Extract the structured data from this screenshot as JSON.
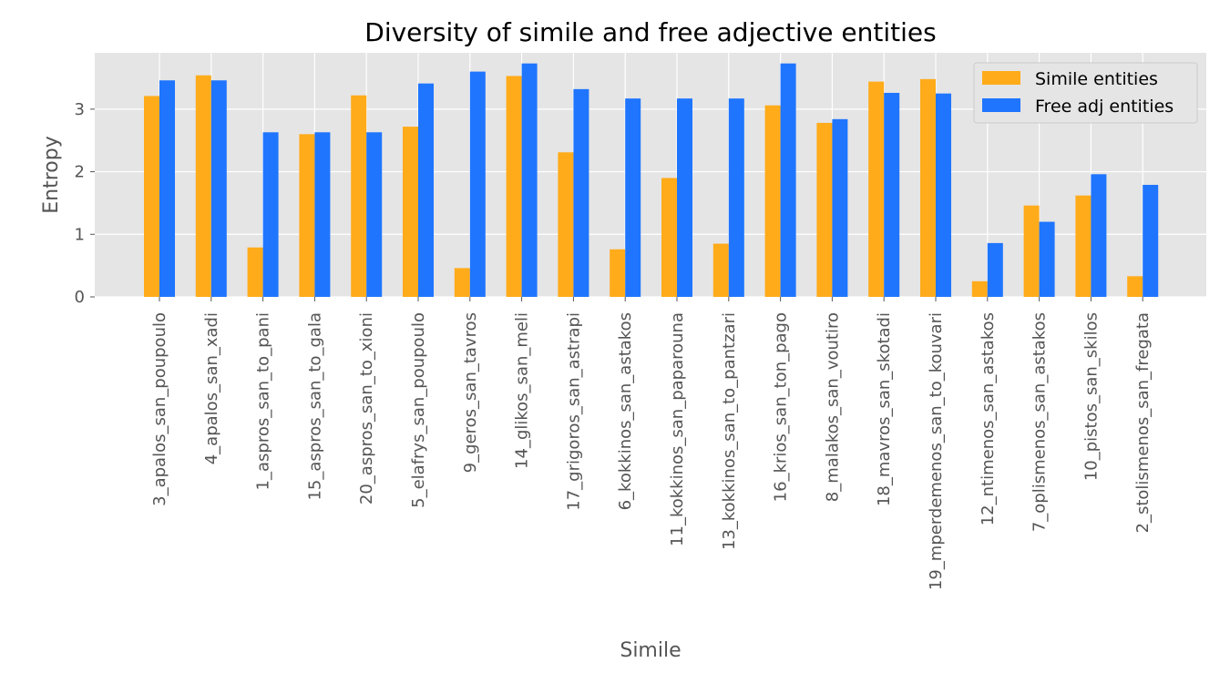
{
  "chart_data": {
    "type": "bar",
    "title": "Diversity of simile and free adjective entities",
    "xlabel": "Simile",
    "ylabel": "Entropy",
    "ylim": [
      0,
      3.9
    ],
    "yticks": [
      0,
      1,
      2,
      3
    ],
    "grid": true,
    "legend_position": "top-right",
    "categories": [
      "3_apalos_san_poupoulo",
      "4_apalos_san_xadi",
      "1_aspros_san_to_pani",
      "15_aspros_san_to_gala",
      "20_aspros_san_to_xioni",
      "5_elafrys_san_poupoulo",
      "9_geros_san_tavros",
      "14_glikos_san_meli",
      "17_grigoros_san_astrapi",
      "6_kokkinos_san_astakos",
      "11_kokkinos_san_paparouna",
      "13_kokkinos_san_to_pantzari",
      "16_krios_san_ton_pago",
      "8_malakos_san_voutiro",
      "18_mavros_san_skotadi",
      "19_mperdemenos_san_to_kouvari",
      "12_ntimenos_san_astakos",
      "7_oplismenos_san_astakos",
      "10_pistos_san_skilos",
      "2_stolismenos_san_fregata"
    ],
    "series": [
      {
        "name": "Simile entities",
        "color": "#ffab1a",
        "values": [
          3.21,
          3.54,
          0.79,
          2.6,
          3.22,
          2.72,
          0.46,
          3.53,
          2.31,
          0.76,
          1.9,
          0.85,
          3.06,
          2.78,
          3.44,
          3.48,
          0.25,
          1.46,
          1.62,
          0.33
        ]
      },
      {
        "name": "Free adj entities",
        "color": "#1f75fe",
        "values": [
          3.46,
          3.46,
          2.63,
          2.63,
          2.63,
          3.41,
          3.6,
          3.73,
          3.32,
          3.17,
          3.17,
          3.17,
          3.73,
          2.84,
          3.26,
          3.25,
          0.86,
          1.2,
          1.96,
          1.79
        ]
      }
    ]
  }
}
